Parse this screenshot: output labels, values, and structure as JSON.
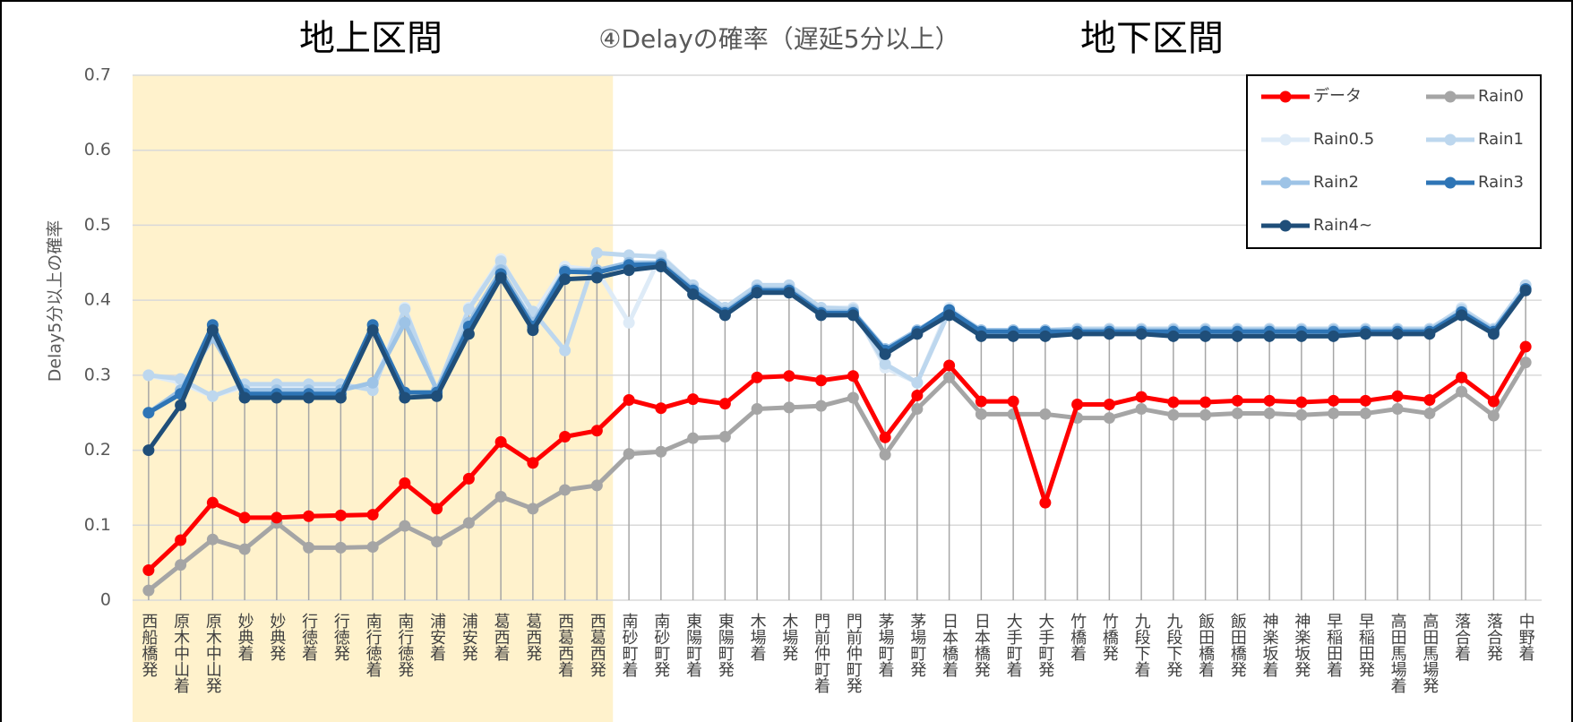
{
  "chart_data": {
    "type": "line",
    "title": "④Delayの確率（遅延5分以上）",
    "annotations": [
      "地上区間",
      "地下区間"
    ],
    "y_label": "Delay5分以上の確率",
    "categories": [
      "西船橋発",
      "原木中山着",
      "原木中山発",
      "妙典着",
      "妙典発",
      "行徳着",
      "行徳発",
      "南行徳着",
      "南行徳発",
      "浦安着",
      "浦安発",
      "葛西着",
      "葛西発",
      "西葛西着",
      "西葛西発",
      "南砂町着",
      "南砂町発",
      "東陽町着",
      "東陽町発",
      "木場着",
      "木場発",
      "門前仲町着",
      "門前仲町発",
      "茅場町着",
      "茅場町発",
      "日本橋着",
      "日本橋発",
      "大手町着",
      "大手町発",
      "竹橋着",
      "竹橋発",
      "九段下着",
      "九段下発",
      "飯田橋着",
      "飯田橋発",
      "神楽坂着",
      "神楽坂発",
      "早稲田着",
      "早稲田発",
      "高田馬場着",
      "高田馬場発",
      "落合着",
      "落合発",
      "中野着"
    ],
    "series": [
      {
        "name": "データ",
        "color": "#ff0000",
        "values": [
          0.04,
          0.08,
          0.13,
          0.11,
          0.11,
          0.112,
          0.113,
          0.114,
          0.156,
          0.122,
          0.162,
          0.211,
          0.183,
          0.218,
          0.226,
          0.267,
          0.256,
          0.268,
          0.262,
          0.297,
          0.299,
          0.293,
          0.299,
          0.217,
          0.273,
          0.313,
          0.265,
          0.265,
          0.13,
          0.261,
          0.261,
          0.271,
          0.264,
          0.264,
          0.266,
          0.266,
          0.264,
          0.266,
          0.266,
          0.272,
          0.267,
          0.297,
          0.265,
          0.338
        ]
      },
      {
        "name": "Rain0",
        "color": "#a5a5a5",
        "values": [
          0.013,
          0.047,
          0.081,
          0.068,
          0.103,
          0.07,
          0.07,
          0.071,
          0.099,
          0.078,
          0.103,
          0.138,
          0.122,
          0.147,
          0.153,
          0.195,
          0.198,
          0.216,
          0.218,
          0.255,
          0.257,
          0.259,
          0.27,
          0.194,
          0.255,
          0.297,
          0.248,
          0.248,
          0.248,
          0.243,
          0.243,
          0.255,
          0.247,
          0.247,
          0.249,
          0.249,
          0.247,
          0.249,
          0.249,
          0.255,
          0.249,
          0.278,
          0.246,
          0.317
        ]
      },
      {
        "name": "Rain0.5",
        "color": "#deebf7",
        "values": [
          0.3,
          0.29,
          0.272,
          0.285,
          0.285,
          0.285,
          0.285,
          0.285,
          0.39,
          0.28,
          0.39,
          0.455,
          0.38,
          0.445,
          0.44,
          0.37,
          0.46,
          0.42,
          0.39,
          0.42,
          0.42,
          0.39,
          0.39,
          0.31,
          0.29,
          0.39,
          0.36,
          0.36,
          0.36,
          0.36,
          0.36,
          0.36,
          0.36,
          0.36,
          0.36,
          0.36,
          0.36,
          0.36,
          0.36,
          0.36,
          0.36,
          0.39,
          0.36,
          0.42
        ]
      },
      {
        "name": "Rain1",
        "color": "#bdd7ee",
        "values": [
          0.3,
          0.295,
          0.272,
          0.288,
          0.288,
          0.288,
          0.288,
          0.28,
          0.388,
          0.28,
          0.388,
          0.452,
          0.385,
          0.333,
          0.463,
          0.46,
          0.458,
          0.42,
          0.39,
          0.42,
          0.42,
          0.39,
          0.388,
          0.315,
          0.29,
          0.385,
          0.36,
          0.36,
          0.36,
          0.362,
          0.362,
          0.362,
          0.362,
          0.362,
          0.362,
          0.362,
          0.362,
          0.362,
          0.362,
          0.362,
          0.362,
          0.388,
          0.362,
          0.42
        ]
      },
      {
        "name": "Rain2",
        "color": "#9dc3e6",
        "values": [
          0.25,
          0.28,
          0.35,
          0.28,
          0.28,
          0.28,
          0.28,
          0.29,
          0.37,
          0.28,
          0.37,
          0.44,
          0.37,
          0.44,
          0.44,
          0.45,
          0.45,
          0.415,
          0.385,
          0.415,
          0.415,
          0.385,
          0.385,
          0.335,
          0.36,
          0.385,
          0.36,
          0.36,
          0.36,
          0.36,
          0.36,
          0.36,
          0.36,
          0.36,
          0.36,
          0.36,
          0.36,
          0.36,
          0.36,
          0.36,
          0.36,
          0.385,
          0.36,
          0.415
        ]
      },
      {
        "name": "Rain3",
        "color": "#2e75b6",
        "values": [
          0.25,
          0.275,
          0.367,
          0.275,
          0.275,
          0.275,
          0.275,
          0.367,
          0.277,
          0.277,
          0.365,
          0.435,
          0.365,
          0.438,
          0.437,
          0.447,
          0.448,
          0.413,
          0.383,
          0.413,
          0.413,
          0.383,
          0.383,
          0.333,
          0.358,
          0.387,
          0.358,
          0.358,
          0.358,
          0.358,
          0.358,
          0.358,
          0.358,
          0.358,
          0.358,
          0.358,
          0.358,
          0.358,
          0.358,
          0.358,
          0.358,
          0.384,
          0.358,
          0.415
        ]
      },
      {
        "name": "Rain4~",
        "color": "#1f4e79",
        "values": [
          0.2,
          0.26,
          0.36,
          0.27,
          0.27,
          0.27,
          0.27,
          0.36,
          0.27,
          0.272,
          0.355,
          0.43,
          0.36,
          0.428,
          0.43,
          0.44,
          0.445,
          0.408,
          0.38,
          0.41,
          0.41,
          0.38,
          0.38,
          0.328,
          0.355,
          0.38,
          0.352,
          0.352,
          0.352,
          0.355,
          0.355,
          0.355,
          0.352,
          0.352,
          0.352,
          0.352,
          0.352,
          0.352,
          0.355,
          0.355,
          0.355,
          0.38,
          0.355,
          0.413
        ]
      }
    ],
    "ylim": [
      0,
      0.7
    ],
    "yticks": [
      0,
      0.1,
      0.2,
      0.3,
      0.4,
      0.5,
      0.6,
      0.7
    ],
    "grid": true,
    "legend": "upper right"
  }
}
